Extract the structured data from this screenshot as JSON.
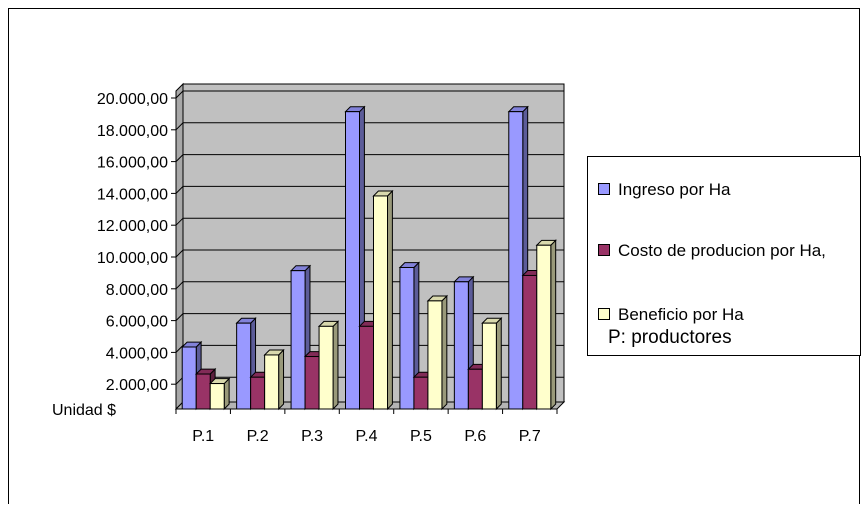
{
  "chart_data": {
    "type": "bar",
    "categories": [
      "P.1",
      "P.2",
      "P.3",
      "P.4",
      "P.5",
      "P.6",
      "P.7"
    ],
    "series": [
      {
        "name": "Ingreso por Ha",
        "color": "#9999ff",
        "values": [
          3900,
          5400,
          8700,
          18700,
          8900,
          8000,
          18700
        ]
      },
      {
        "name": "Costo de producion por Ha,",
        "color": "#993366",
        "values": [
          2200,
          2000,
          3300,
          5200,
          2000,
          2500,
          8400
        ]
      },
      {
        "name": "Beneficio por Ha",
        "color": "#ffffcc",
        "values": [
          1600,
          3400,
          5200,
          13400,
          6800,
          5400,
          10300
        ]
      }
    ],
    "y_ticks": [
      "20.000,00",
      "18.000,00",
      "16.000,00",
      "14.000,00",
      "12.000,00",
      "10.000,00",
      "8.000,00",
      "6.000,00",
      "4.000,00",
      "2.000,00"
    ],
    "y_tick_values": [
      20000,
      18000,
      16000,
      14000,
      12000,
      10000,
      8000,
      6000,
      4000,
      2000
    ],
    "ylim": [
      0,
      20000
    ],
    "ylabel": "Unidad $",
    "legend_note": "P: productores",
    "legend_position": "right",
    "grid": true,
    "style": "3d-clustered-column"
  }
}
